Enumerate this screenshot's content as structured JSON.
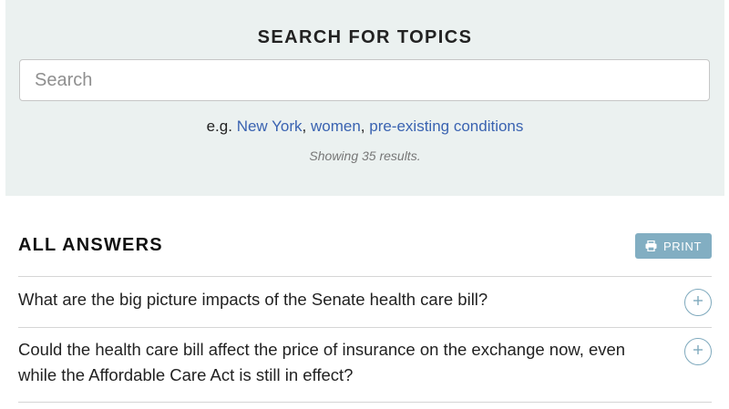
{
  "search": {
    "title": "SEARCH FOR TOPICS",
    "placeholder": "Search",
    "value": "",
    "examples_prefix": "e.g. ",
    "examples": [
      {
        "label": "New York"
      },
      {
        "label": "women"
      },
      {
        "label": "pre-existing conditions"
      }
    ],
    "separator": ", ",
    "results_text": "Showing 35 results."
  },
  "answers": {
    "heading": "ALL ANSWERS",
    "print_label": "PRINT",
    "print_icon": "printer-icon",
    "expand_icon": "plus-icon",
    "questions": [
      {
        "text": "What are the big picture impacts of the Senate health care bill?"
      },
      {
        "text": "Could the health care bill affect the price of insurance on the exchange now, even while the Affordable Care Act is still in effect?"
      }
    ]
  },
  "colors": {
    "panel_bg": "#ebf1f0",
    "link": "#3a63b1",
    "print_button_bg": "#82aec2",
    "expand_icon": "#7ea9bd",
    "divider": "#d5d5d5"
  }
}
